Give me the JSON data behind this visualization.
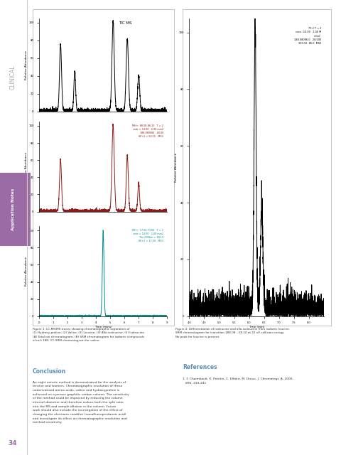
{
  "page_bg": "#ffffff",
  "clinical_text": "CLINICAL",
  "clinical_color": "#aaaaaa",
  "app_notes_bg": "#9b6ba5",
  "app_notes_text": "Application Notes",
  "app_notes_color": "#ffffff",
  "figure1_title": "TIC MS",
  "figure2_legend": "73.2 T = 2\nconc: 10.00   2.00 M\nmm2:\n188.08086.0   20/100\n300.10  86.0  MS3",
  "conclusion_title": "Conclusion",
  "conclusion_title_color": "#5b8db8",
  "conclusion_text": "An eight minute method is demonstrated for the analysis of\nlencine and isomers. Chromatographic resolution of these\nunderivatised amino acids, valine and hydroxyproline is\nachieved on a porous graphitic carbon column. The sensitivity\nof the method could be improved by reducing the column\ninternal diameter and therefore reduce both the split ratio\ninto the MS and sample dilution in the column. Future\nwork should also include the investigation of the effect of\nchanging the electronic modifier (nonafluoropentanoic acid)\nand investigate its effect on chromatographic resolution and\nmethod sensitivity.",
  "references_title": "References",
  "references_title_color": "#5b8db8",
  "references_text": "1. F. Chaimbault, K. Petritis, C. Elfakir, M. Dreux, J. Chromatogr. A, 2000,\n   896, 233-241",
  "fig_caption1": "Figure 1: LC-MS/MS traces showing chromatographic separation of\n(1) Hydroxy-proline; (2) Valine; (3) Leucine; (4) Allo-isoleucine; (5) Isoleucine.\n(A) Total ion chromatogram; (B) SRM chromatogram for isobaric compounds\nof m/z 188; (C) SRM chromatogram for valine.",
  "fig_caption2": "Figure 2: Differentiation of isoleucine and allo-isoleucine from isobaric leucine.\nSRM chromatogram for transition 188.08 – 69.10 at 32 eV collision energy.\nNo peak for leucine is present.",
  "page_number": "34",
  "page_number_color": "#9b6ba5",
  "ann2_color": "#8B1A1A",
  "ann3_color": "#008B8B",
  "srm_ann2": "MH+: 88.08-86.13   T = 2\ncndc = 14.00   2.00 mm2\n188.080000   40.00\n0E+2 = 60.15   MS3",
  "srm_ann3": "MH+: 17.60-73.60   T = 2\nconc = 14.00   2.00 mm2\nThe 000bm = 100.0\n0E+2 = 12.50   MS3"
}
